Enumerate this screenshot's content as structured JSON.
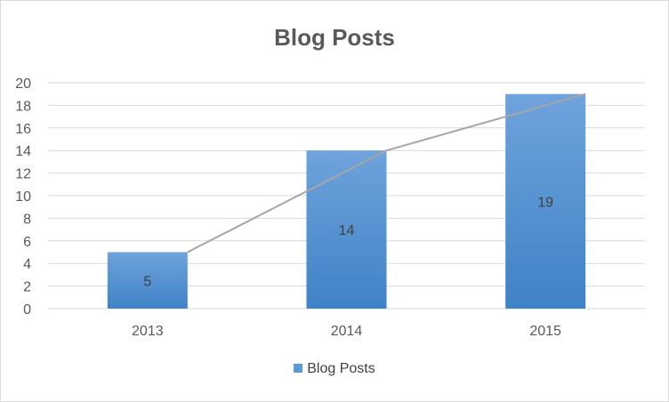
{
  "chart_data": {
    "type": "bar",
    "title": "Blog Posts",
    "categories": [
      "2013",
      "2014",
      "2015"
    ],
    "series": [
      {
        "name": "Blog Posts",
        "values": [
          5,
          14,
          19
        ]
      }
    ],
    "ylim": [
      0,
      20
    ],
    "yticks": [
      "0",
      "2",
      "4",
      "6",
      "8",
      "10",
      "12",
      "14",
      "16",
      "18",
      "20"
    ],
    "grid": true,
    "data_labels": [
      "5",
      "14",
      "19"
    ],
    "trend_line": true,
    "legend_position": "bottom",
    "colors": {
      "bar_top": "#6fa3dc",
      "bar_bottom": "#3f82c6",
      "gridline": "#d9d9d9",
      "trend_line": "#a6a6a6",
      "axis_text": "#595959",
      "legend_swatch": "#5b9bd5"
    }
  }
}
